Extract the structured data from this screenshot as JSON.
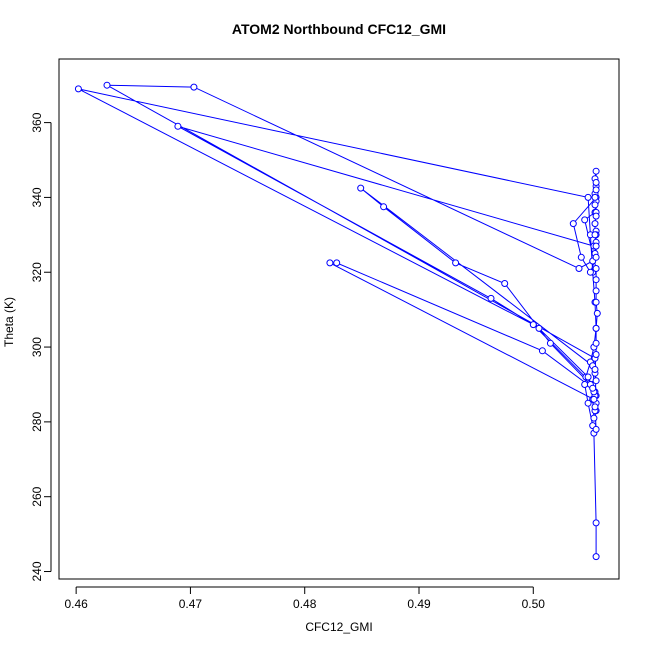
{
  "chart_data": {
    "type": "line",
    "title": "ATOM2 Northbound CFC12_GMI",
    "xlabel": "CFC12_GMI",
    "ylabel": "Theta (K)",
    "xlim": [
      0.4585,
      0.5075
    ],
    "ylim": [
      238,
      377
    ],
    "x_ticks": [
      0.46,
      0.47,
      0.48,
      0.49,
      0.5
    ],
    "x_tick_labels": [
      "0.46",
      "0.47",
      "0.48",
      "0.49",
      "0.50"
    ],
    "y_ticks": [
      240,
      260,
      280,
      300,
      320,
      340,
      360
    ],
    "y_tick_labels": [
      "240",
      "260",
      "280",
      "300",
      "320",
      "340",
      "360"
    ],
    "grid": false,
    "line_color": "#0000ff",
    "series": [
      {
        "x": [
          0.5055,
          0.5055,
          0.5053,
          0.5052,
          0.5048,
          0.5045,
          0.5046,
          0.505,
          0.5053,
          0.5055,
          0.5054,
          0.5052,
          0.505,
          0.5048,
          0.4602,
          0.5,
          0.5052,
          0.5052,
          0.5053,
          0.5055,
          0.5055,
          0.5054,
          0.5054,
          0.4627,
          0.4703,
          0.504,
          0.5052,
          0.5054,
          0.5055,
          0.5055,
          0.5055,
          0.5053,
          0.4689,
          0.4963,
          0.5005,
          0.5048,
          0.5054,
          0.5055,
          0.5054,
          0.5052,
          0.4849,
          0.4869,
          0.4932,
          0.4975,
          0.5015,
          0.505,
          0.5054,
          0.5055,
          0.5054,
          0.5053,
          0.5053,
          0.4822,
          0.4828,
          0.5008,
          0.5052,
          0.5055,
          0.5054,
          0.5055,
          0.5055,
          0.5055,
          0.5056,
          0.5055,
          0.5055,
          0.5055,
          0.5055,
          0.5045,
          0.5054,
          0.5055,
          0.5035,
          0.5042,
          0.505,
          0.5055,
          0.5055,
          0.5054,
          0.5054,
          0.5055,
          0.5055,
          0.5054,
          0.5055,
          0.5054,
          0.5055,
          0.5055,
          0.5055,
          0.5054,
          0.5054,
          0.5055
        ],
        "y": [
          244,
          253,
          277,
          279,
          285,
          290,
          292,
          296,
          300,
          305,
          312,
          320,
          330,
          340,
          369,
          306,
          290,
          286,
          281,
          283,
          287,
          293,
          297,
          370,
          369.5,
          321,
          323,
          325,
          328,
          331,
          330,
          327,
          359,
          313,
          305,
          292,
          288,
          285,
          287,
          295,
          342.5,
          337.5,
          322.5,
          317,
          301,
          290,
          283,
          278,
          284,
          288,
          286,
          322.5,
          322.5,
          299,
          289,
          291,
          294,
          298,
          301,
          305,
          309,
          312,
          315,
          318,
          321,
          334,
          336,
          340,
          333,
          324,
          320,
          324,
          327,
          330,
          333,
          336,
          339,
          341,
          343,
          345,
          347,
          344,
          342,
          340,
          338,
          335
        ]
      }
    ]
  }
}
